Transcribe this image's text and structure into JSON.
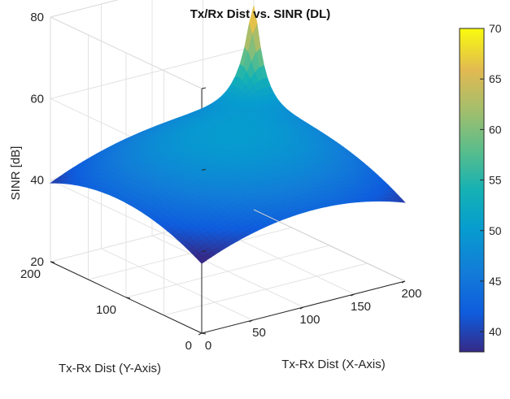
{
  "chart_data": {
    "type": "surface",
    "title": "Tx/Rx Dist vs. SINR (DL)",
    "xlabel": "Tx-Rx Dist (X-Axis)",
    "ylabel": "Tx-Rx Dist (Y-Axis)",
    "zlabel": "SINR [dB]",
    "xlim": [
      0,
      200
    ],
    "ylim": [
      0,
      200
    ],
    "zlim": [
      20,
      80
    ],
    "xticks": [
      "0",
      "50",
      "100",
      "150",
      "200"
    ],
    "yticks": [
      "0",
      "100",
      "200"
    ],
    "zticks": [
      "20",
      "40",
      "60",
      "80"
    ],
    "grid": true,
    "peak": {
      "x": 200,
      "y": 200,
      "z": 70
    },
    "corner_values": [
      {
        "x": 0,
        "y": 0,
        "z": 37
      },
      {
        "x": 200,
        "y": 0,
        "z": 38
      },
      {
        "x": 0,
        "y": 200,
        "z": 38
      }
    ],
    "colorbar": {
      "min": 38,
      "max": 70,
      "ticks": [
        "40",
        "45",
        "50",
        "55",
        "60",
        "65",
        "70"
      ]
    }
  }
}
